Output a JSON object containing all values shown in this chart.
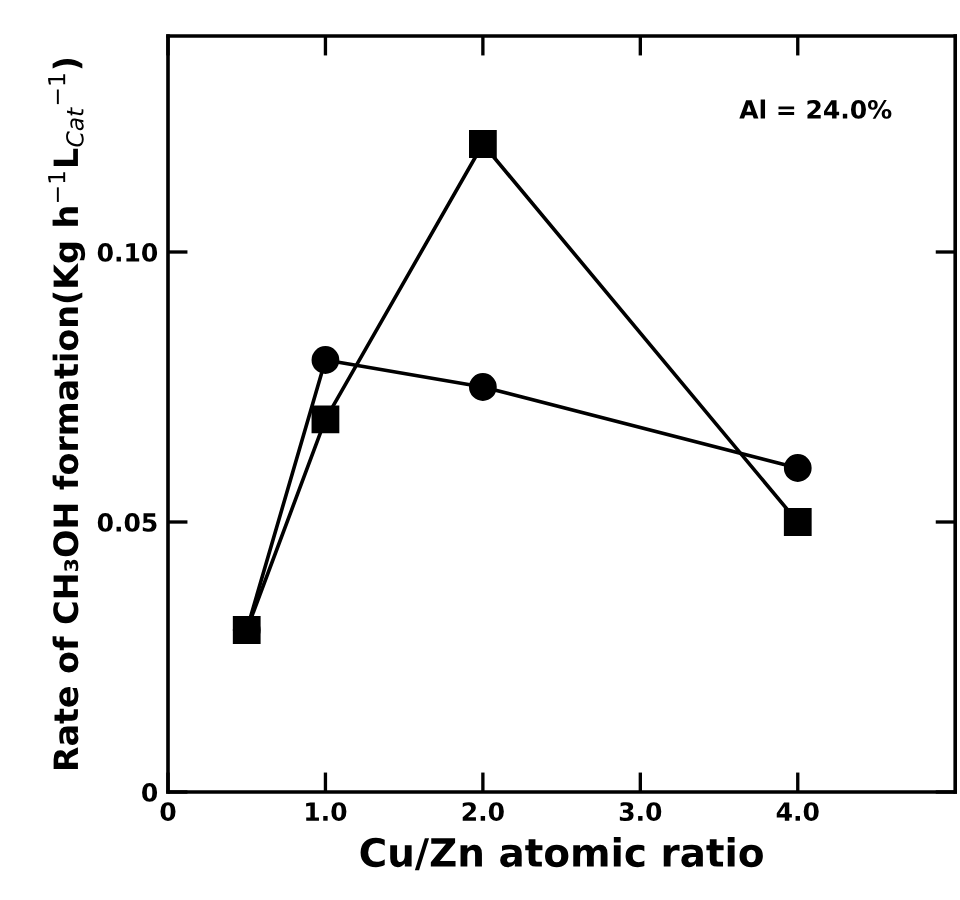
{
  "chart_data": {
    "type": "line",
    "xlabel": "Cu/Zn atomic ratio",
    "ylabel": "Rate of CH₃OH formation(Kg h$^{−1}$L$_{Cat}$$^{−1}$)",
    "annotations": [
      "Al = 24.0%"
    ],
    "series": [
      {
        "color": "#000000",
        "marker": "circle",
        "x": [
          0.5,
          1.0,
          2.0,
          4.0
        ],
        "values": [
          0.03,
          0.08,
          0.075,
          0.06
        ]
      },
      {
        "color": "#000000",
        "marker": "square",
        "x": [
          0.5,
          1.0,
          2.0,
          4.0
        ],
        "values": [
          0.03,
          0.069,
          0.12,
          0.05
        ]
      }
    ],
    "xlim": [
      0,
      5
    ],
    "xticks": [
      0,
      {
        "value": 1,
        "label": "1.0"
      },
      {
        "value": 2,
        "label": "2.0"
      },
      {
        "value": 3,
        "label": "3.0"
      },
      {
        "value": 4,
        "label": "4.0"
      }
    ],
    "ylim": [
      0,
      0.14
    ],
    "yticks": [
      0,
      0.05,
      {
        "value": 0.1,
        "label": "0.10"
      }
    ],
    "grid": false,
    "legend": false,
    "line_style": "solid"
  }
}
